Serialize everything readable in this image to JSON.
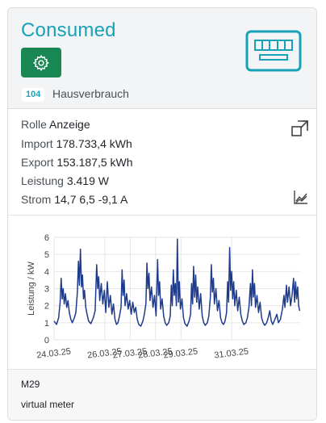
{
  "header": {
    "title": "Consumed",
    "badge_id": "104",
    "badge_label": "Hausverbrauch",
    "settings_icon": "gear-icon",
    "meter_icon": "meter-icon",
    "accent_color": "#17a2b8",
    "settings_color": "#198754"
  },
  "info": {
    "rolle_label": "Rolle",
    "rolle_value": "Anzeige",
    "import_label": "Import",
    "import_value": "178.733,4 kWh",
    "export_label": "Export",
    "export_value": "153.187,5 kWh",
    "leistung_label": "Leistung",
    "leistung_value": "3.419 W",
    "strom_label": "Strom",
    "strom_value": "14,7 6,5 -9,1 A",
    "expand_icon": "expand-icon",
    "chart_icon": "line-chart-icon"
  },
  "chart_data": {
    "type": "line",
    "ylabel": "Leistung / kW",
    "xlabel": "",
    "ylim": [
      0,
      6
    ],
    "yticks": [
      "0",
      "1",
      "2",
      "3",
      "4",
      "5",
      "6"
    ],
    "x_range": [
      0,
      9.7
    ],
    "xticks": [
      {
        "label": "24.03.25",
        "x": 0
      },
      {
        "label": "26.03.25",
        "x": 2
      },
      {
        "label": "27.03.25",
        "x": 3
      },
      {
        "label": "28.03.25",
        "x": 4
      },
      {
        "label": "29.03.25",
        "x": 5
      },
      {
        "label": "31.03.25",
        "x": 7
      }
    ],
    "grid": true,
    "line_color": "#1f3b8c",
    "series": [
      {
        "values": [
          [
            0.0,
            1.1
          ],
          [
            0.1,
            0.9
          ],
          [
            0.18,
            1.3
          ],
          [
            0.24,
            2.2
          ],
          [
            0.28,
            3.6
          ],
          [
            0.32,
            2.4
          ],
          [
            0.36,
            3.0
          ],
          [
            0.4,
            2.1
          ],
          [
            0.45,
            2.7
          ],
          [
            0.5,
            1.9
          ],
          [
            0.55,
            2.3
          ],
          [
            0.6,
            1.6
          ],
          [
            0.66,
            1.2
          ],
          [
            0.72,
            1.0
          ],
          [
            0.8,
            1.3
          ],
          [
            0.86,
            1.6
          ],
          [
            0.92,
            2.8
          ],
          [
            0.96,
            4.6
          ],
          [
            1.0,
            3.2
          ],
          [
            1.04,
            5.3
          ],
          [
            1.08,
            3.1
          ],
          [
            1.12,
            3.8
          ],
          [
            1.16,
            2.4
          ],
          [
            1.2,
            2.9
          ],
          [
            1.25,
            1.9
          ],
          [
            1.3,
            1.5
          ],
          [
            1.36,
            1.1
          ],
          [
            1.45,
            0.95
          ],
          [
            1.55,
            1.3
          ],
          [
            1.62,
            1.7
          ],
          [
            1.68,
            4.4
          ],
          [
            1.72,
            3.0
          ],
          [
            1.76,
            3.7
          ],
          [
            1.8,
            2.3
          ],
          [
            1.86,
            3.3
          ],
          [
            1.92,
            2.1
          ],
          [
            1.98,
            2.9
          ],
          [
            2.04,
            1.6
          ],
          [
            2.1,
            3.4
          ],
          [
            2.16,
            1.9
          ],
          [
            2.22,
            2.6
          ],
          [
            2.28,
            1.5
          ],
          [
            2.34,
            2.1
          ],
          [
            2.4,
            1.2
          ],
          [
            2.46,
            0.9
          ],
          [
            2.52,
            1.0
          ],
          [
            2.58,
            1.4
          ],
          [
            2.64,
            1.9
          ],
          [
            2.68,
            4.1
          ],
          [
            2.72,
            2.6
          ],
          [
            2.76,
            3.5
          ],
          [
            2.8,
            2.0
          ],
          [
            2.86,
            2.7
          ],
          [
            2.92,
            1.8
          ],
          [
            2.98,
            2.3
          ],
          [
            3.04,
            1.5
          ],
          [
            3.1,
            2.2
          ],
          [
            3.16,
            1.6
          ],
          [
            3.22,
            1.9
          ],
          [
            3.28,
            1.2
          ],
          [
            3.34,
            0.9
          ],
          [
            3.42,
            0.8
          ],
          [
            3.5,
            1.1
          ],
          [
            3.56,
            1.5
          ],
          [
            3.62,
            2.1
          ],
          [
            3.66,
            4.5
          ],
          [
            3.7,
            3.0
          ],
          [
            3.74,
            3.9
          ],
          [
            3.78,
            2.3
          ],
          [
            3.84,
            3.1
          ],
          [
            3.9,
            1.9
          ],
          [
            3.96,
            2.6
          ],
          [
            4.02,
            1.4
          ],
          [
            4.08,
            4.7
          ],
          [
            4.12,
            2.6
          ],
          [
            4.16,
            3.4
          ],
          [
            4.2,
            1.8
          ],
          [
            4.26,
            2.4
          ],
          [
            4.32,
            1.4
          ],
          [
            4.38,
            1.0
          ],
          [
            4.44,
            0.85
          ],
          [
            4.52,
            1.0
          ],
          [
            4.58,
            1.4
          ],
          [
            4.62,
            3.2
          ],
          [
            4.66,
            2.0
          ],
          [
            4.7,
            4.1
          ],
          [
            4.74,
            2.6
          ],
          [
            4.78,
            3.3
          ],
          [
            4.82,
            2.0
          ],
          [
            4.86,
            5.9
          ],
          [
            4.9,
            2.2
          ],
          [
            4.94,
            3.4
          ],
          [
            4.98,
            1.8
          ],
          [
            5.04,
            2.4
          ],
          [
            5.1,
            1.3
          ],
          [
            5.16,
            0.95
          ],
          [
            5.24,
            0.8
          ],
          [
            5.32,
            1.1
          ],
          [
            5.38,
            1.5
          ],
          [
            5.42,
            3.3
          ],
          [
            5.46,
            2.1
          ],
          [
            5.5,
            4.3
          ],
          [
            5.54,
            2.5
          ],
          [
            5.58,
            3.8
          ],
          [
            5.62,
            2.2
          ],
          [
            5.66,
            3.1
          ],
          [
            5.72,
            1.8
          ],
          [
            5.78,
            2.7
          ],
          [
            5.84,
            1.4
          ],
          [
            5.9,
            1.0
          ],
          [
            5.96,
            0.85
          ],
          [
            6.04,
            1.0
          ],
          [
            6.1,
            1.4
          ],
          [
            6.16,
            2.5
          ],
          [
            6.2,
            4.4
          ],
          [
            6.24,
            2.8
          ],
          [
            6.28,
            3.6
          ],
          [
            6.32,
            2.1
          ],
          [
            6.38,
            3.0
          ],
          [
            6.44,
            1.7
          ],
          [
            6.5,
            2.3
          ],
          [
            6.56,
            1.3
          ],
          [
            6.62,
            1.0
          ],
          [
            6.68,
            0.9
          ],
          [
            6.74,
            1.1
          ],
          [
            6.8,
            1.6
          ],
          [
            6.84,
            3.4
          ],
          [
            6.88,
            2.2
          ],
          [
            6.92,
            5.4
          ],
          [
            6.96,
            2.9
          ],
          [
            7.0,
            4.0
          ],
          [
            7.04,
            2.4
          ],
          [
            7.08,
            3.4
          ],
          [
            7.12,
            2.0
          ],
          [
            7.18,
            2.9
          ],
          [
            7.24,
            1.7
          ],
          [
            7.3,
            2.5
          ],
          [
            7.36,
            1.5
          ],
          [
            7.42,
            1.1
          ],
          [
            7.48,
            0.9
          ],
          [
            7.56,
            1.0
          ],
          [
            7.62,
            1.3
          ],
          [
            7.68,
            1.9
          ],
          [
            7.74,
            3.3
          ],
          [
            7.78,
            2.0
          ],
          [
            7.82,
            4.1
          ],
          [
            7.86,
            2.5
          ],
          [
            7.9,
            3.3
          ],
          [
            7.94,
            1.9
          ],
          [
            8.0,
            2.6
          ],
          [
            8.06,
            1.6
          ],
          [
            8.12,
            2.2
          ],
          [
            8.18,
            1.3
          ],
          [
            8.24,
            1.0
          ],
          [
            8.3,
            0.85
          ],
          [
            8.38,
            1.0
          ],
          [
            8.44,
            1.3
          ],
          [
            8.5,
            1.7
          ],
          [
            8.56,
            1.1
          ],
          [
            8.62,
            0.9
          ],
          [
            8.7,
            1.2
          ],
          [
            8.78,
            1.5
          ],
          [
            8.84,
            1.0
          ],
          [
            8.92,
            1.2
          ],
          [
            9.0,
            1.8
          ],
          [
            9.06,
            2.6
          ],
          [
            9.1,
            1.9
          ],
          [
            9.16,
            3.2
          ],
          [
            9.2,
            2.2
          ],
          [
            9.26,
            3.1
          ],
          [
            9.32,
            2.0
          ],
          [
            9.38,
            2.6
          ],
          [
            9.44,
            3.6
          ],
          [
            9.48,
            2.2
          ],
          [
            9.52,
            3.4
          ],
          [
            9.56,
            2.4
          ],
          [
            9.6,
            3.1
          ],
          [
            9.64,
            2.0
          ],
          [
            9.68,
            1.7
          ]
        ]
      }
    ]
  },
  "footer": {
    "line1": "M29",
    "line2": "virtual meter"
  }
}
